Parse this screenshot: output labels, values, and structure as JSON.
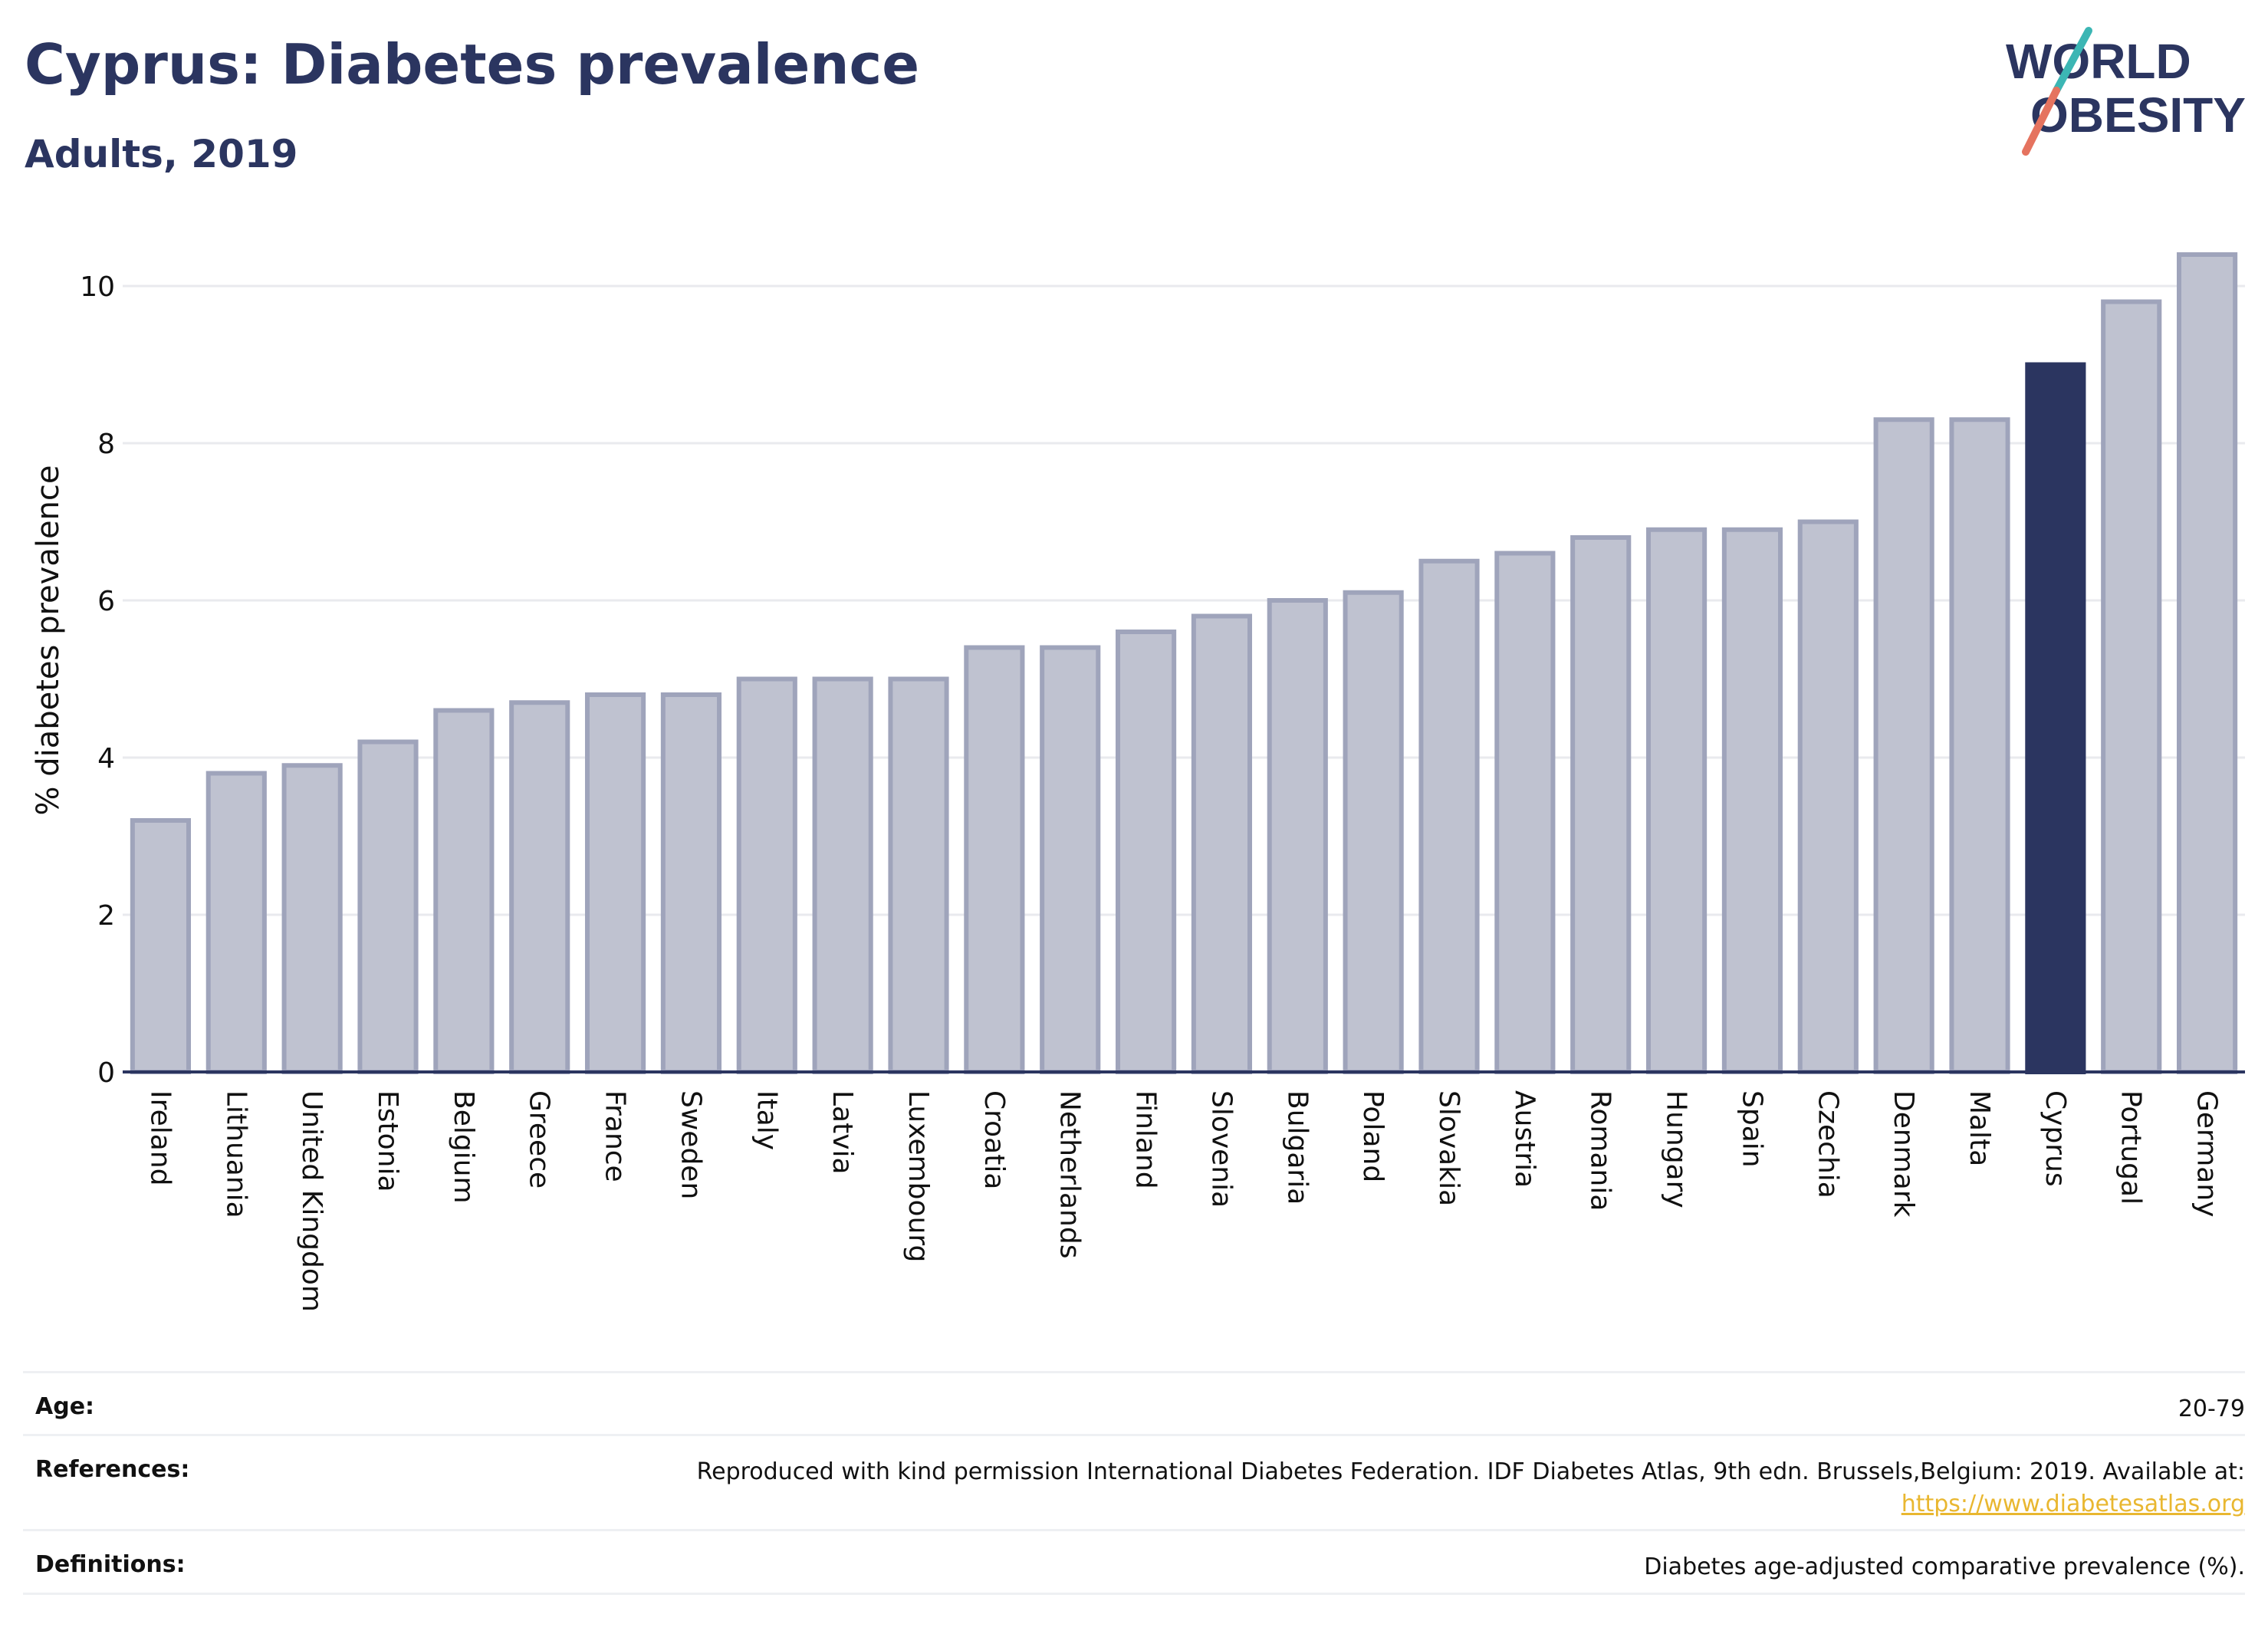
{
  "header": {
    "title": "Cyprus: Diabetes prevalence",
    "subtitle": "Adults, 2019",
    "logo_line1": "WORLD",
    "logo_line2": "OBESITY"
  },
  "colors": {
    "bar": "#bfc2d0",
    "bar_stroke": "#9fa4bb",
    "highlight": "#2b3560",
    "logo_teal": "#3cb6b4",
    "logo_coral": "#e5735f",
    "link": "#e9b730"
  },
  "chart_data": {
    "type": "bar",
    "title": "Cyprus: Diabetes prevalence",
    "subtitle": "Adults, 2019",
    "xlabel": "",
    "ylabel": "% diabetes prevalence",
    "ylim": [
      0,
      10.5
    ],
    "yticks": [
      0,
      2,
      4,
      6,
      8,
      10
    ],
    "grid": true,
    "highlight": "Cyprus",
    "categories": [
      "Ireland",
      "Lithuania",
      "United Kingdom",
      "Estonia",
      "Belgium",
      "Greece",
      "France",
      "Sweden",
      "Italy",
      "Latvia",
      "Luxembourg",
      "Croatia",
      "Netherlands",
      "Finland",
      "Slovenia",
      "Bulgaria",
      "Poland",
      "Slovakia",
      "Austria",
      "Romania",
      "Hungary",
      "Spain",
      "Czechia",
      "Denmark",
      "Malta",
      "Cyprus",
      "Portugal",
      "Germany"
    ],
    "values": [
      3.2,
      3.8,
      3.9,
      4.2,
      4.6,
      4.7,
      4.8,
      4.8,
      5.0,
      5.0,
      5.0,
      5.4,
      5.4,
      5.6,
      5.8,
      6.0,
      6.1,
      6.5,
      6.6,
      6.8,
      6.9,
      6.9,
      7.0,
      8.3,
      8.3,
      9.0,
      9.8,
      10.4
    ]
  },
  "footer": {
    "age_label": "Age:",
    "age_value": "20-79",
    "references_label": "References:",
    "references_text": "Reproduced with kind permission International Diabetes Federation. IDF Diabetes Atlas, 9th edn. Brussels,Belgium: 2019. Available at:",
    "references_link": "https://www.diabetesatlas.org",
    "definitions_label": "Definitions:",
    "definitions_text": "Diabetes age-adjusted comparative prevalence (%)."
  }
}
